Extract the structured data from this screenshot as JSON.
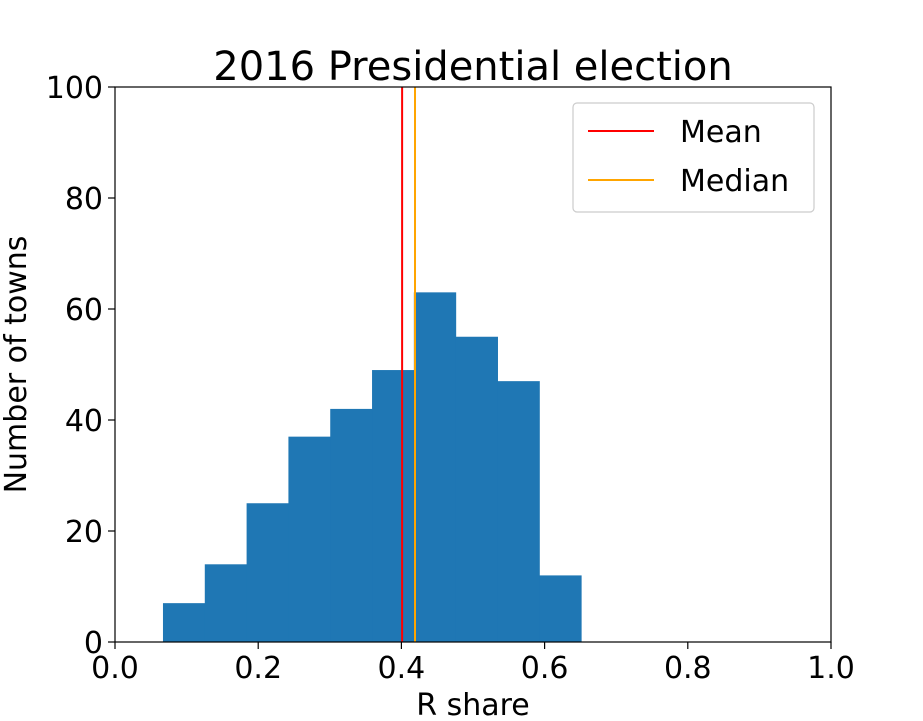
{
  "chart_data": {
    "type": "bar",
    "title": "2016 Presidential election",
    "xlabel": "R share",
    "ylabel": "Number of towns",
    "xlim": [
      0.0,
      1.0
    ],
    "ylim": [
      0,
      100
    ],
    "xticks": [
      "0.0",
      "0.2",
      "0.4",
      "0.6",
      "0.8",
      "1.0"
    ],
    "yticks": [
      "0",
      "20",
      "40",
      "60",
      "80",
      "100"
    ],
    "bin_edges": [
      0.067,
      0.1254,
      0.1838,
      0.2422,
      0.3006,
      0.359,
      0.4174,
      0.4758,
      0.5342,
      0.5926,
      0.651
    ],
    "counts": [
      7,
      14,
      25,
      37,
      42,
      49,
      63,
      55,
      47,
      12
    ],
    "bar_color": "#1f77b4",
    "lines": [
      {
        "name": "Mean",
        "x": 0.401,
        "color": "#ff0000"
      },
      {
        "name": "Median",
        "x": 0.419,
        "color": "#ffa500"
      }
    ],
    "legend_position": "top-right",
    "grid": false
  }
}
